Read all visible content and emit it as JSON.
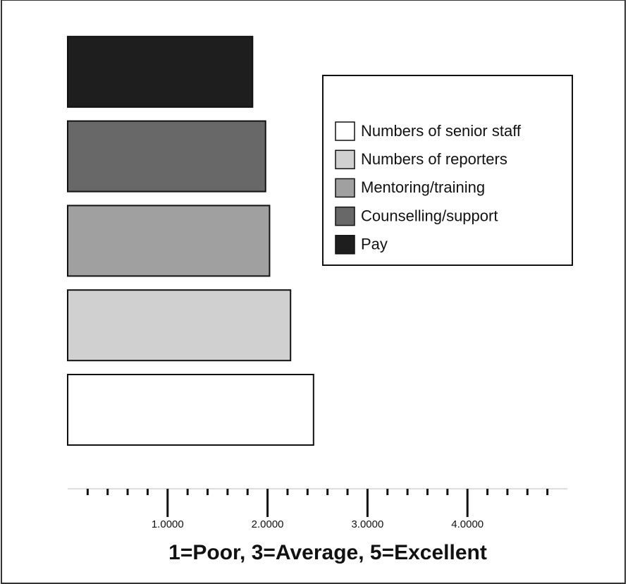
{
  "chart_data": {
    "type": "barh",
    "x_label": "1=Poor, 3=Average, 5=Excellent",
    "categories": [
      "Numbers of senior staff",
      "Numbers of reporters",
      "Mentoring/training",
      "Counselling/support",
      "Pay"
    ],
    "values": [
      2.46,
      2.23,
      2.02,
      1.98,
      1.85
    ],
    "colors": [
      "#ffffff",
      "#d0d0d0",
      "#a0a0a0",
      "#686868",
      "#1e1e1e"
    ],
    "xlim": [
      0,
      5
    ],
    "xticks": [
      {
        "value": 1,
        "label": "1.0000"
      },
      {
        "value": 2,
        "label": "2.0000"
      },
      {
        "value": 3,
        "label": "3.0000"
      },
      {
        "value": 4,
        "label": "4.0000"
      }
    ],
    "minor_xticks": [
      0.2,
      0.4,
      0.6,
      0.8,
      1.2,
      1.4,
      1.6,
      1.8,
      2.2,
      2.4,
      2.6,
      2.8,
      3.2,
      3.4,
      3.6,
      3.8,
      4.2,
      4.4,
      4.6,
      4.8
    ],
    "legend": "upper right"
  }
}
